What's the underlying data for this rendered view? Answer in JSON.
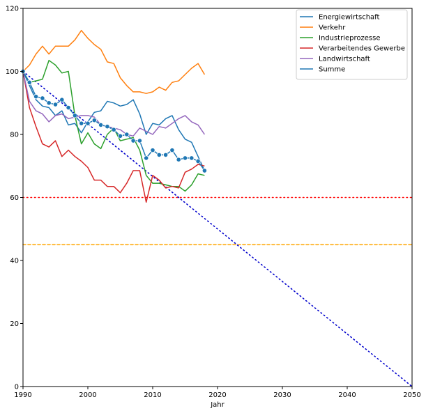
{
  "chart_data": {
    "type": "line",
    "title": "",
    "xlabel": "Jahr",
    "ylabel": "",
    "xlim": [
      1990,
      2050
    ],
    "ylim": [
      0,
      120
    ],
    "xticks": [
      1990,
      2000,
      2010,
      2020,
      2030,
      2040,
      2050
    ],
    "yticks": [
      0,
      20,
      40,
      60,
      80,
      100,
      120
    ],
    "grid": false,
    "legend_position": "top-right",
    "years": [
      1990,
      1991,
      1992,
      1993,
      1994,
      1995,
      1996,
      1997,
      1998,
      1999,
      2000,
      2001,
      2002,
      2003,
      2004,
      2005,
      2006,
      2007,
      2008,
      2009,
      2010,
      2011,
      2012,
      2013,
      2014,
      2015,
      2016,
      2017,
      2018
    ],
    "series": [
      {
        "name": "Energiewirtschaft",
        "color": "#1f77b4",
        "values": [
          100,
          95.5,
          91,
          89,
          88.5,
          86,
          87.5,
          83,
          83.5,
          80.5,
          84,
          87,
          87.5,
          90.5,
          90,
          89,
          89.5,
          91,
          86.5,
          80,
          83.5,
          83,
          85,
          86,
          81.5,
          78.5,
          77.5,
          73,
          68.5
        ]
      },
      {
        "name": "Verkehr",
        "color": "#ff7f0e",
        "values": [
          100,
          102,
          105.5,
          108,
          105.5,
          108,
          108,
          108,
          110,
          113,
          110.5,
          108.5,
          107,
          103,
          102.5,
          98,
          95.5,
          93.5,
          93.5,
          93,
          93.5,
          95,
          94,
          96.5,
          97,
          99,
          101,
          102.5,
          99
        ]
      },
      {
        "name": "Industrieprozesse",
        "color": "#2ca02c",
        "values": [
          100,
          96.5,
          97,
          97.5,
          103.5,
          102,
          99.5,
          100,
          86,
          77,
          80.5,
          77,
          75.5,
          80,
          82,
          78,
          78.5,
          79,
          75,
          67,
          64.5,
          64.5,
          64,
          63.5,
          63.5,
          62,
          64,
          67.5,
          67
        ]
      },
      {
        "name": "Verarbeitendes Gewerbe",
        "color": "#d62728",
        "values": [
          100,
          88.5,
          82.5,
          77,
          76,
          78,
          73,
          75,
          73,
          71.5,
          69.5,
          65.5,
          65.5,
          63.5,
          63.5,
          61.5,
          64.5,
          68.5,
          68.5,
          58.5,
          67,
          65.5,
          63,
          63.5,
          63,
          68,
          69,
          70.5,
          70
        ]
      },
      {
        "name": "Landwirtschaft",
        "color": "#9467bd",
        "values": [
          100,
          90.5,
          87.5,
          86.5,
          84,
          86,
          86.5,
          85,
          85.5,
          86,
          86,
          85.5,
          83,
          82.5,
          82,
          81.5,
          80,
          79.5,
          82,
          81,
          80,
          82.5,
          82,
          83.5,
          85,
          86,
          84,
          83,
          80
        ]
      },
      {
        "name": "Summe",
        "color": "#1f77b4",
        "markers": true,
        "values": [
          100,
          96.5,
          92,
          91.5,
          90,
          89.5,
          91,
          88.5,
          86,
          83.5,
          83.5,
          84.5,
          83,
          82.5,
          81.5,
          79.5,
          80,
          78,
          78,
          72.5,
          75,
          73.5,
          73.5,
          75,
          72,
          72.5,
          72.5,
          71.5,
          68.5
        ]
      }
    ],
    "reference_lines": [
      {
        "type": "horizontal",
        "y": 60,
        "color": "#ff0000",
        "style": "dotted"
      },
      {
        "type": "horizontal",
        "y": 45,
        "color": "#ffa500",
        "style": "dashed"
      },
      {
        "type": "trend",
        "from": [
          1990,
          100
        ],
        "to": [
          2050,
          0
        ],
        "color": "#0000cc",
        "style": "dotted"
      }
    ]
  }
}
